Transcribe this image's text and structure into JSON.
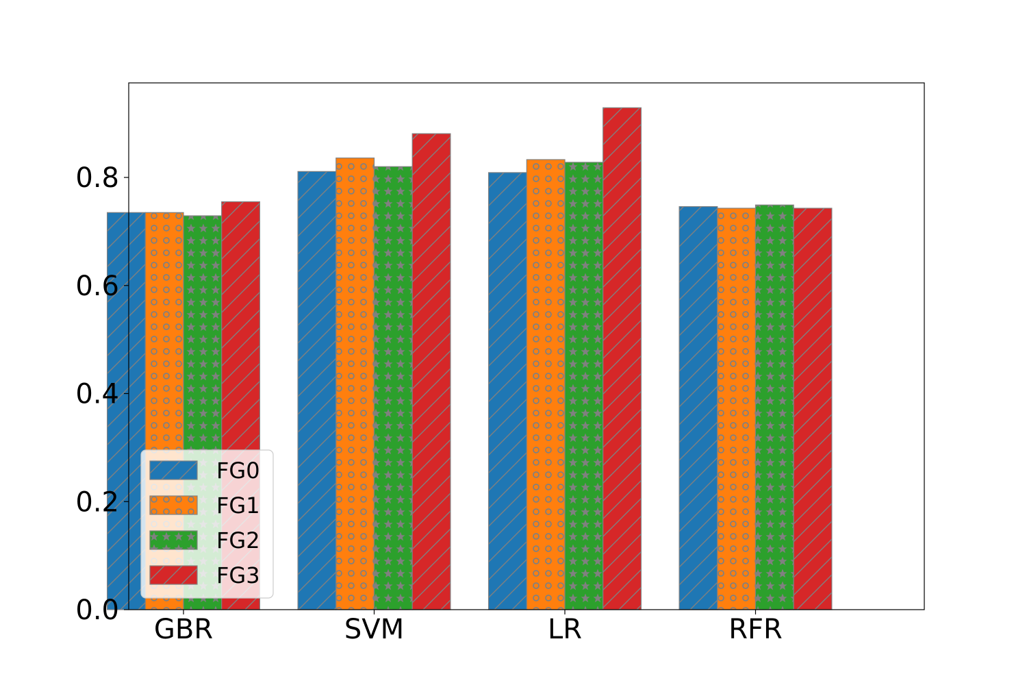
{
  "chart_data": {
    "type": "bar",
    "title": "",
    "xlabel": "",
    "ylabel": "",
    "categories": [
      "GBR",
      "SVM",
      "LR",
      "RFR"
    ],
    "series": [
      {
        "name": "FG0",
        "values": [
          0.735,
          0.811,
          0.809,
          0.746
        ],
        "color": "#1f77b4",
        "hatch": "diagonal"
      },
      {
        "name": "FG1",
        "values": [
          0.735,
          0.836,
          0.833,
          0.743
        ],
        "color": "#ff7f0e",
        "hatch": "circles"
      },
      {
        "name": "FG2",
        "values": [
          0.729,
          0.82,
          0.828,
          0.749
        ],
        "color": "#2ca02c",
        "hatch": "stars"
      },
      {
        "name": "FG3",
        "values": [
          0.755,
          0.881,
          0.929,
          0.743
        ],
        "color": "#d62728",
        "hatch": "diagonal"
      }
    ],
    "ylim": [
      0,
      0.975
    ],
    "yticks": [
      "0.0",
      "0.2",
      "0.4",
      "0.6",
      "0.8"
    ],
    "grid": false,
    "legend_position": "lower-left",
    "edge_color": "#808080"
  }
}
